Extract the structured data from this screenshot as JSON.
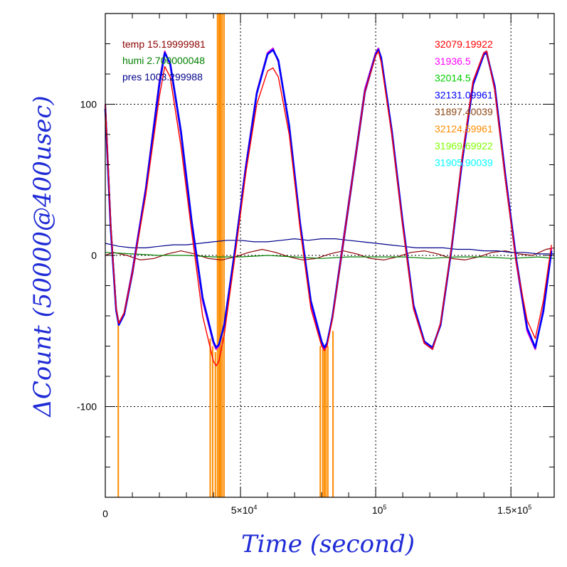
{
  "chart_data": {
    "type": "line",
    "xlabel": "Time (second)",
    "ylabel": "ΔCount (50000@400usec)",
    "xlim": [
      0,
      166000
    ],
    "ylim": [
      -160,
      160
    ],
    "grid": true,
    "x_ticks": [
      {
        "value": 0,
        "label": "0"
      },
      {
        "value": 50000,
        "base": "5×10",
        "exp": "4"
      },
      {
        "value": 100000,
        "base": "10",
        "exp": "5"
      },
      {
        "value": 150000,
        "base": "1.5×10",
        "exp": "5"
      }
    ],
    "y_ticks": [
      {
        "value": 100,
        "label": "100"
      },
      {
        "value": 0,
        "label": "0"
      },
      {
        "value": -100,
        "label": "-100"
      }
    ],
    "legend_left": [
      {
        "text": "temp 15.19999981",
        "color": "#8b0000"
      },
      {
        "text": "humi 2.700000048",
        "color": "#008000"
      },
      {
        "text": "pres 1003.299988",
        "color": "#00008b"
      }
    ],
    "legend_right": [
      {
        "text": "32079.19922",
        "color": "#ff0000"
      },
      {
        "text": "31936.5",
        "color": "#ff00ff"
      },
      {
        "text": "32014.5",
        "color": "#00cc00"
      },
      {
        "text": "32131.09961",
        "color": "#0000ff"
      },
      {
        "text": "31897.40039",
        "color": "#8b4513"
      },
      {
        "text": "32124.59961",
        "color": "#ff8c00"
      },
      {
        "text": "31969.69922",
        "color": "#7fff00"
      },
      {
        "text": "31905.90039",
        "color": "#00ffff"
      }
    ],
    "main_series": {
      "x": [
        0,
        2000,
        4000,
        5000,
        7000,
        10000,
        15000,
        20000,
        22000,
        24000,
        28000,
        32000,
        36000,
        40000,
        41000,
        42000,
        44000,
        48000,
        52000,
        56000,
        60000,
        62000,
        64000,
        68000,
        72000,
        76000,
        80000,
        81000,
        82000,
        84000,
        88000,
        92000,
        96000,
        100000,
        101000,
        102000,
        106000,
        110000,
        114000,
        118000,
        121000,
        124000,
        128000,
        132000,
        136000,
        140000,
        141000,
        144000,
        148000,
        152000,
        156000,
        159000,
        162000,
        165000
      ],
      "ys": {
        "32079.19922": [
          100,
          20,
          -35,
          -45,
          -38,
          -10,
          45,
          115,
          135,
          126,
          80,
          20,
          -30,
          -58,
          -62,
          -60,
          -45,
          5,
          60,
          108,
          134,
          137,
          128,
          85,
          20,
          -32,
          -58,
          -62,
          -59,
          -40,
          10,
          60,
          110,
          134,
          137,
          130,
          80,
          20,
          -35,
          -58,
          -62,
          -45,
          5,
          65,
          115,
          134,
          135,
          110,
          50,
          -5,
          -50,
          -62,
          -35,
          5
        ],
        "31936.5": [
          100,
          20,
          -35,
          -45,
          -38,
          -10,
          45,
          115,
          135,
          126,
          80,
          20,
          -30,
          -58,
          -62,
          -60,
          -45,
          5,
          60,
          108,
          134,
          137,
          128,
          85,
          20,
          -32,
          -58,
          -62,
          -59,
          -40,
          10,
          60,
          110,
          134,
          137,
          130,
          80,
          20,
          -35,
          -58,
          -62,
          -45,
          5,
          65,
          115,
          134,
          135,
          110,
          50,
          -5,
          -50,
          -62,
          -35,
          5
        ],
        "32014.5": [
          100,
          20,
          -35,
          -45,
          -38,
          -10,
          45,
          115,
          135,
          126,
          80,
          20,
          -30,
          -58,
          -62,
          -60,
          -45,
          5,
          60,
          108,
          134,
          137,
          128,
          85,
          20,
          -32,
          -58,
          -62,
          -59,
          -40,
          10,
          60,
          110,
          134,
          137,
          130,
          80,
          20,
          -35,
          -58,
          -62,
          -45,
          5,
          65,
          115,
          134,
          135,
          110,
          50,
          -5,
          -50,
          -62,
          -35,
          5
        ],
        "32131.09961": [
          97,
          18,
          -36,
          -46,
          -39,
          -12,
          43,
          113,
          134,
          127,
          82,
          22,
          -28,
          -57,
          -61,
          -59,
          -46,
          4,
          58,
          107,
          133,
          136,
          129,
          86,
          22,
          -30,
          -57,
          -61,
          -58,
          -41,
          8,
          58,
          108,
          133,
          136,
          131,
          82,
          22,
          -33,
          -57,
          -61,
          -46,
          4,
          63,
          113,
          133,
          134,
          112,
          52,
          -3,
          -48,
          -61,
          -37,
          3
        ],
        "31897.40039": [
          100,
          20,
          -35,
          -45,
          -38,
          -10,
          45,
          115,
          135,
          126,
          80,
          20,
          -30,
          -58,
          -62,
          -60,
          -45,
          5,
          60,
          108,
          134,
          137,
          128,
          85,
          20,
          -32,
          -58,
          -62,
          -59,
          -40,
          10,
          60,
          110,
          134,
          137,
          130,
          80,
          20,
          -35,
          -58,
          -62,
          -45,
          5,
          65,
          115,
          134,
          135,
          110,
          50,
          -5,
          -50,
          -62,
          -35,
          5
        ],
        "32124.59961": [
          100,
          20,
          -35,
          -45,
          -38,
          -10,
          45,
          115,
          135,
          126,
          80,
          20,
          -30,
          -58,
          -62,
          -60,
          -45,
          5,
          60,
          108,
          134,
          137,
          128,
          85,
          20,
          -32,
          -58,
          -62,
          -59,
          -40,
          10,
          60,
          110,
          134,
          137,
          130,
          80,
          20,
          -35,
          -58,
          -62,
          -45,
          5,
          65,
          115,
          134,
          135,
          110,
          50,
          -5,
          -50,
          -62,
          -35,
          5
        ],
        "31969.69922": [
          100,
          20,
          -35,
          -45,
          -38,
          -10,
          45,
          115,
          135,
          126,
          80,
          20,
          -30,
          -58,
          -62,
          -60,
          -45,
          5,
          60,
          108,
          134,
          137,
          128,
          85,
          20,
          -32,
          -58,
          -62,
          -59,
          -40,
          10,
          60,
          110,
          134,
          137,
          130,
          80,
          20,
          -35,
          -58,
          -62,
          -45,
          5,
          65,
          115,
          134,
          135,
          110,
          50,
          -5,
          -50,
          -62,
          -35,
          5
        ],
        "31905.90039": [
          100,
          20,
          -35,
          -45,
          -38,
          -10,
          45,
          115,
          135,
          126,
          80,
          20,
          -30,
          -58,
          -62,
          -60,
          -45,
          5,
          60,
          108,
          134,
          137,
          128,
          85,
          20,
          -32,
          -58,
          -62,
          -59,
          -40,
          10,
          60,
          110,
          134,
          137,
          130,
          80,
          20,
          -35,
          -58,
          -62,
          -45,
          5,
          65,
          115,
          134,
          135,
          110,
          50,
          -5,
          -50,
          -62,
          -35,
          5
        ]
      }
    },
    "red_anomaly_series": {
      "name": "32079.19922",
      "x": [
        0,
        2000,
        4000,
        5000,
        7000,
        10000,
        15000,
        20000,
        22000,
        24000,
        28000,
        32000,
        36000,
        40000,
        41000,
        42000,
        44000,
        48000,
        52000,
        56000,
        60000,
        62000,
        64000,
        68000,
        72000,
        76000,
        80000,
        81000,
        82000,
        84000,
        88000,
        92000,
        96000,
        100000,
        101000,
        102000,
        106000,
        110000,
        114000,
        118000,
        121000,
        124000,
        128000,
        132000,
        136000,
        140000,
        141000,
        144000,
        148000,
        152000,
        156000,
        159000,
        162000,
        165000
      ],
      "y": [
        100,
        20,
        -35,
        -45,
        -38,
        -12,
        40,
        105,
        125,
        118,
        72,
        15,
        -40,
        -70,
        -73,
        -70,
        -52,
        0,
        55,
        100,
        122,
        124,
        118,
        80,
        18,
        -35,
        -60,
        -63,
        -60,
        -42,
        8,
        58,
        108,
        132,
        135,
        128,
        80,
        20,
        -35,
        -58,
        -62,
        -45,
        5,
        65,
        115,
        134,
        135,
        110,
        50,
        -5,
        -43,
        -55,
        -30,
        7
      ]
    },
    "env_series": [
      {
        "name": "temp",
        "color": "#8b0000",
        "x": [
          0,
          3000,
          8000,
          13000,
          18000,
          23000,
          28000,
          33000,
          38000,
          43000,
          48000,
          53000,
          58000,
          63000,
          68000,
          73000,
          78000,
          83000,
          88000,
          93000,
          98000,
          103000,
          108000,
          113000,
          118000,
          123000,
          128000,
          133000,
          138000,
          143000,
          148000,
          153000,
          158000,
          163000,
          166000
        ],
        "y": [
          0,
          2,
          0,
          -3,
          -2,
          1,
          3,
          1,
          -2,
          -3,
          -1,
          2,
          4,
          2,
          -1,
          -3,
          -2,
          1,
          3,
          1,
          -2,
          -3,
          -1,
          2,
          3,
          1,
          -2,
          -3,
          -1,
          2,
          3,
          1,
          0,
          4,
          5
        ]
      },
      {
        "name": "humi",
        "color": "#008000",
        "x": [
          0,
          10000,
          20000,
          30000,
          40000,
          50000,
          60000,
          70000,
          80000,
          90000,
          100000,
          110000,
          120000,
          130000,
          140000,
          150000,
          160000,
          166000
        ],
        "y": [
          2,
          1,
          0,
          0,
          -1,
          -1,
          0,
          -1,
          -2,
          -1,
          -1,
          -1,
          -2,
          -1,
          -1,
          -2,
          -1,
          -2
        ]
      },
      {
        "name": "pres",
        "color": "#00008b",
        "x": [
          0,
          5000,
          10000,
          15000,
          20000,
          25000,
          30000,
          35000,
          40000,
          45000,
          50000,
          55000,
          60000,
          65000,
          70000,
          75000,
          80000,
          85000,
          90000,
          95000,
          100000,
          105000,
          110000,
          115000,
          120000,
          125000,
          130000,
          135000,
          140000,
          145000,
          150000,
          155000,
          160000,
          166000
        ],
        "y": [
          8,
          6,
          5,
          5,
          6,
          7,
          7,
          8,
          9,
          10,
          10,
          9,
          9,
          10,
          11,
          10,
          11,
          11,
          10,
          9,
          8,
          7,
          6,
          5,
          5,
          5,
          4,
          4,
          3,
          3,
          2,
          2,
          1,
          1
        ]
      }
    ],
    "orange_spikes": [
      {
        "x": 4800,
        "y_top": -45
      },
      {
        "x": 38800,
        "y_top": -55
      },
      {
        "x": 39700,
        "y_top": -60
      },
      {
        "x": 40700,
        "y_top": -64
      },
      {
        "x": 41500,
        "y_top": 160
      },
      {
        "x": 42100,
        "y_top": 160
      },
      {
        "x": 42600,
        "y_top": 160
      },
      {
        "x": 43200,
        "y_top": 160
      },
      {
        "x": 43900,
        "y_top": 160
      },
      {
        "x": 79500,
        "y_top": -60
      },
      {
        "x": 80400,
        "y_top": -62
      },
      {
        "x": 81000,
        "y_top": -63
      },
      {
        "x": 81600,
        "y_top": -62
      },
      {
        "x": 82300,
        "y_top": -60
      },
      {
        "x": 84200,
        "y_top": -50
      }
    ]
  }
}
